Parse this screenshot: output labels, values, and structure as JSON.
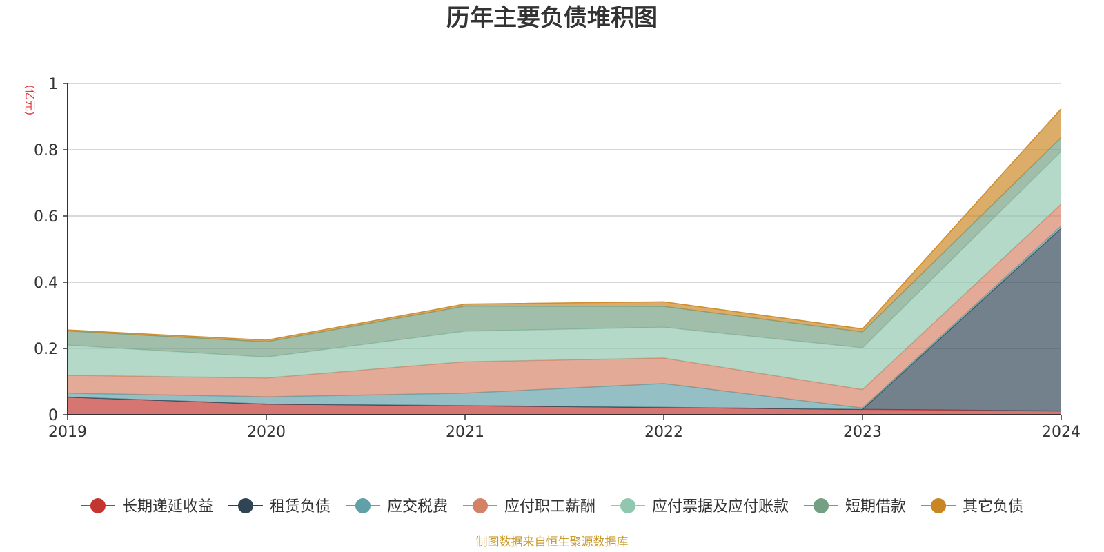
{
  "chart_data": {
    "type": "area",
    "stacked": true,
    "title": "历年主要负债堆积图",
    "unit_label": "(亿元)",
    "source_note": "制图数据来自恒生聚源数据库",
    "x": [
      "2019",
      "2020",
      "2021",
      "2022",
      "2023",
      "2024"
    ],
    "ylim": [
      0,
      1
    ],
    "yticks": [
      "0",
      "0.2",
      "0.4",
      "0.6",
      "0.8",
      "1"
    ],
    "grid": true,
    "legend_position": "bottom",
    "series": [
      {
        "name": "长期递延收益",
        "color": "#c23531",
        "values": [
          0.053,
          0.032,
          0.027,
          0.022,
          0.016,
          0.011
        ]
      },
      {
        "name": "租赁负债",
        "color": "#2f4554",
        "values": [
          0.0,
          0.0,
          0.0,
          0.0,
          0.0,
          0.552
        ]
      },
      {
        "name": "应交税费",
        "color": "#61a0a8",
        "values": [
          0.012,
          0.022,
          0.038,
          0.072,
          0.004,
          0.007
        ]
      },
      {
        "name": "应付职工薪酬",
        "color": "#d48265",
        "values": [
          0.054,
          0.057,
          0.095,
          0.077,
          0.056,
          0.066
        ]
      },
      {
        "name": "应付票据及应付账款",
        "color": "#91c7ae",
        "values": [
          0.091,
          0.063,
          0.092,
          0.093,
          0.126,
          0.159
        ]
      },
      {
        "name": "短期借款",
        "color": "#749f83",
        "values": [
          0.043,
          0.046,
          0.076,
          0.063,
          0.048,
          0.042
        ]
      },
      {
        "name": "其它负债",
        "color": "#ca8622",
        "values": [
          0.003,
          0.005,
          0.006,
          0.014,
          0.009,
          0.087
        ]
      }
    ]
  }
}
